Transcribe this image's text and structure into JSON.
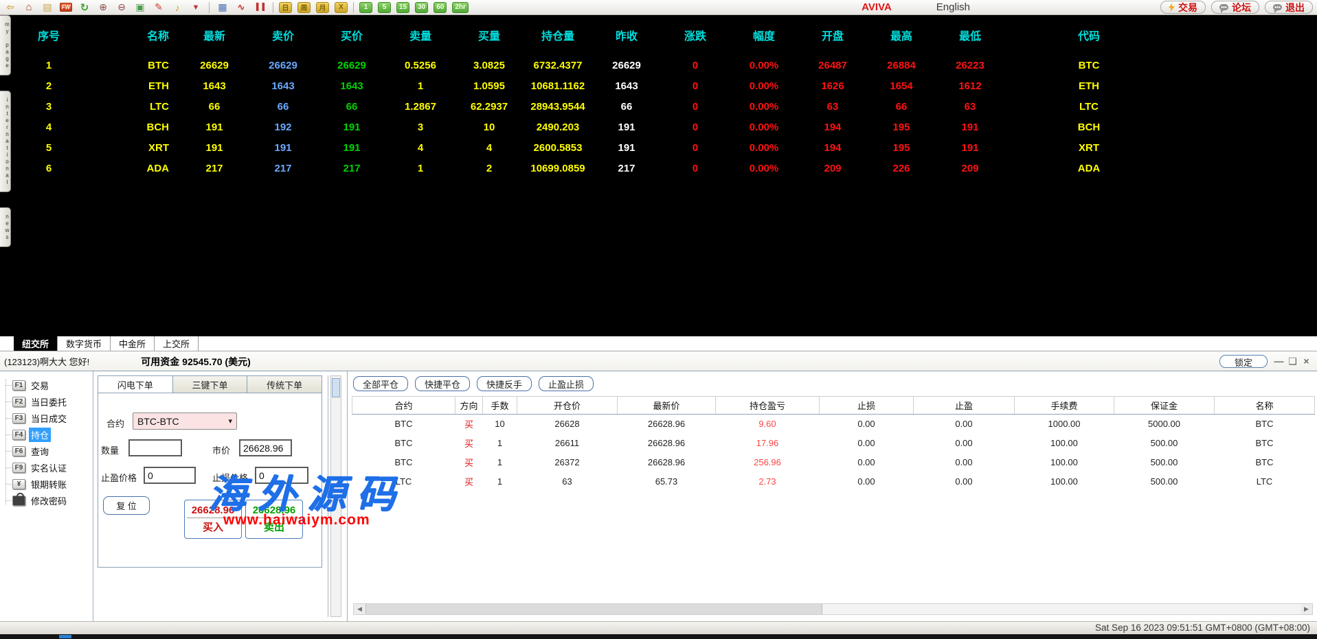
{
  "toolbar": {
    "icons": [
      {
        "name": "back-icon",
        "glyph": "⇦",
        "cls": "i-back"
      },
      {
        "name": "home-icon",
        "glyph": "⌂",
        "cls": "i-home"
      },
      {
        "name": "notes-icon",
        "glyph": "▤",
        "cls": "i-notes"
      },
      {
        "name": "fw-calendar-icon",
        "glyph": "FW",
        "cls": "i-fw"
      },
      {
        "name": "refresh-icon",
        "glyph": "↻",
        "cls": "i-refresh"
      },
      {
        "name": "zoom-in-icon",
        "glyph": "⊕",
        "cls": "i-zoomin"
      },
      {
        "name": "zoom-out-icon",
        "glyph": "⊖",
        "cls": "i-zoomout"
      },
      {
        "name": "layers-icon",
        "glyph": "▣",
        "cls": "i-layers"
      },
      {
        "name": "pencil-icon",
        "glyph": "✎",
        "cls": "i-pencil"
      },
      {
        "name": "horn-icon",
        "glyph": "♪",
        "cls": "i-horn"
      },
      {
        "name": "filter-icon",
        "glyph": "▼",
        "cls": "i-filter"
      },
      {
        "name": "separator",
        "glyph": "",
        "cls": "i-sep"
      },
      {
        "name": "quote-table-icon",
        "glyph": "▦",
        "cls": "i-table"
      },
      {
        "name": "line-chart-icon",
        "glyph": "∿",
        "cls": "i-line"
      },
      {
        "name": "candlestick-chart-icon",
        "glyph": "▌▐",
        "cls": "i-candle"
      },
      {
        "name": "separator",
        "glyph": "",
        "cls": "i-sep"
      }
    ],
    "period_buttons": [
      "日",
      "周",
      "月",
      "X"
    ],
    "interval_buttons": [
      "1",
      "5",
      "15",
      "30",
      "60",
      "2hr"
    ],
    "brand": "AVIVA",
    "language": "English",
    "actions": [
      {
        "label": "交易",
        "icon": "ic-bolt"
      },
      {
        "label": "论坛",
        "icon": "ic-chat"
      },
      {
        "label": "退出",
        "icon": "ic-chat"
      }
    ]
  },
  "side_tabs": [
    "my page",
    "international",
    "news"
  ],
  "quotes": {
    "headers": [
      "序号",
      "名称",
      "最新",
      "卖价",
      "买价",
      "卖量",
      "买量",
      "持仓量",
      "昨收",
      "涨跌",
      "幅度",
      "开盘",
      "最高",
      "最低",
      "代码"
    ],
    "rows": [
      [
        "1",
        "BTC",
        "26629",
        "26629",
        "26629",
        "0.5256",
        "3.0825",
        "6732.4377",
        "26629",
        "0",
        "0.00%",
        "26487",
        "26884",
        "26223",
        "BTC"
      ],
      [
        "2",
        "ETH",
        "1643",
        "1643",
        "1643",
        "1",
        "1.0595",
        "10681.1162",
        "1643",
        "0",
        "0.00%",
        "1626",
        "1654",
        "1612",
        "ETH"
      ],
      [
        "3",
        "LTC",
        "66",
        "66",
        "66",
        "1.2867",
        "62.2937",
        "28943.9544",
        "66",
        "0",
        "0.00%",
        "63",
        "66",
        "63",
        "LTC"
      ],
      [
        "4",
        "BCH",
        "191",
        "192",
        "191",
        "3",
        "10",
        "2490.203",
        "191",
        "0",
        "0.00%",
        "194",
        "195",
        "191",
        "BCH"
      ],
      [
        "5",
        "XRT",
        "191",
        "191",
        "191",
        "4",
        "4",
        "2600.5853",
        "191",
        "0",
        "0.00%",
        "194",
        "195",
        "191",
        "XRT"
      ],
      [
        "6",
        "ADA",
        "217",
        "217",
        "217",
        "1",
        "2",
        "10699.0859",
        "217",
        "0",
        "0.00%",
        "209",
        "226",
        "209",
        "ADA"
      ]
    ]
  },
  "exchange_tabs": [
    {
      "label": "纽交所",
      "active": true
    },
    {
      "label": "数字货币"
    },
    {
      "label": "中金所"
    },
    {
      "label": "上交所"
    }
  ],
  "account_bar": {
    "greeting": "(123123)啊大大 您好!",
    "funds": "可用资金 92545.70 (美元)",
    "lock_label": "锁定",
    "window_controls": [
      {
        "name": "minimize-icon",
        "glyph": "—"
      },
      {
        "name": "restore-icon",
        "glyph": "❏"
      },
      {
        "name": "close-icon",
        "glyph": "×"
      }
    ]
  },
  "menu": {
    "items": [
      {
        "key": "F1",
        "label": "交易"
      },
      {
        "key": "F2",
        "label": "当日委托"
      },
      {
        "key": "F3",
        "label": "当日成交"
      },
      {
        "key": "F4",
        "label": "持仓",
        "active": true
      },
      {
        "key": "F6",
        "label": "查询"
      },
      {
        "key": "F9",
        "label": "实名认证"
      },
      {
        "key": "¥",
        "label": "银期转账"
      },
      {
        "key": "",
        "label": "修改密码",
        "keyCls": "kc-lock"
      }
    ]
  },
  "order_panel": {
    "tabs": [
      {
        "label": "闪电下单",
        "active": true
      },
      {
        "label": "三键下单"
      },
      {
        "label": "传统下单"
      }
    ],
    "contract_label": "合约",
    "contract_value": "BTC-BTC",
    "qty_label": "数量",
    "qty_value": "",
    "market_label": "市价",
    "market_value": "26628.96",
    "tp_label": "止盈价格",
    "tp_value": "0",
    "sl_label": "止损价格",
    "sl_value": "0",
    "reset_label": "复 位",
    "buy_price": "26628.96",
    "buy_label": "买入",
    "sell_price": "26628.96",
    "sell_label": "卖出"
  },
  "positions": {
    "buttons": [
      "全部平仓",
      "快捷平仓",
      "快捷反手",
      "止盈止损"
    ],
    "headers": [
      "合约",
      "方向",
      "手数",
      "开仓价",
      "最新价",
      "持仓盈亏",
      "止损",
      "止盈",
      "手续费",
      "保证金",
      "名称"
    ],
    "rows": [
      [
        "BTC",
        "买",
        "10",
        "26628",
        "26628.96",
        "9.60",
        "0.00",
        "0.00",
        "1000.00",
        "5000.00",
        "BTC"
      ],
      [
        "BTC",
        "买",
        "1",
        "26611",
        "26628.96",
        "17.96",
        "0.00",
        "0.00",
        "100.00",
        "500.00",
        "BTC"
      ],
      [
        "BTC",
        "买",
        "1",
        "26372",
        "26628.96",
        "256.96",
        "0.00",
        "0.00",
        "100.00",
        "500.00",
        "BTC"
      ],
      [
        "LTC",
        "买",
        "1",
        "63",
        "65.73",
        "2.73",
        "0.00",
        "0.00",
        "100.00",
        "500.00",
        "LTC"
      ]
    ]
  },
  "watermark": {
    "line1": "海外源码",
    "line2": "www.haiwaiym.com"
  },
  "status_bar": {
    "timestamp": "Sat Sep 16 2023 09:51:51 GMT+0800 (GMT+08:00)"
  },
  "colors": {
    "accent_red": "#e01616",
    "quote_yellow": "#ffff00",
    "quote_blue": "#6aa9ff",
    "quote_green": "#00d400",
    "quote_red": "#ff1212",
    "header_cyan": "#00dede",
    "select_blue": "#31a0ff"
  }
}
